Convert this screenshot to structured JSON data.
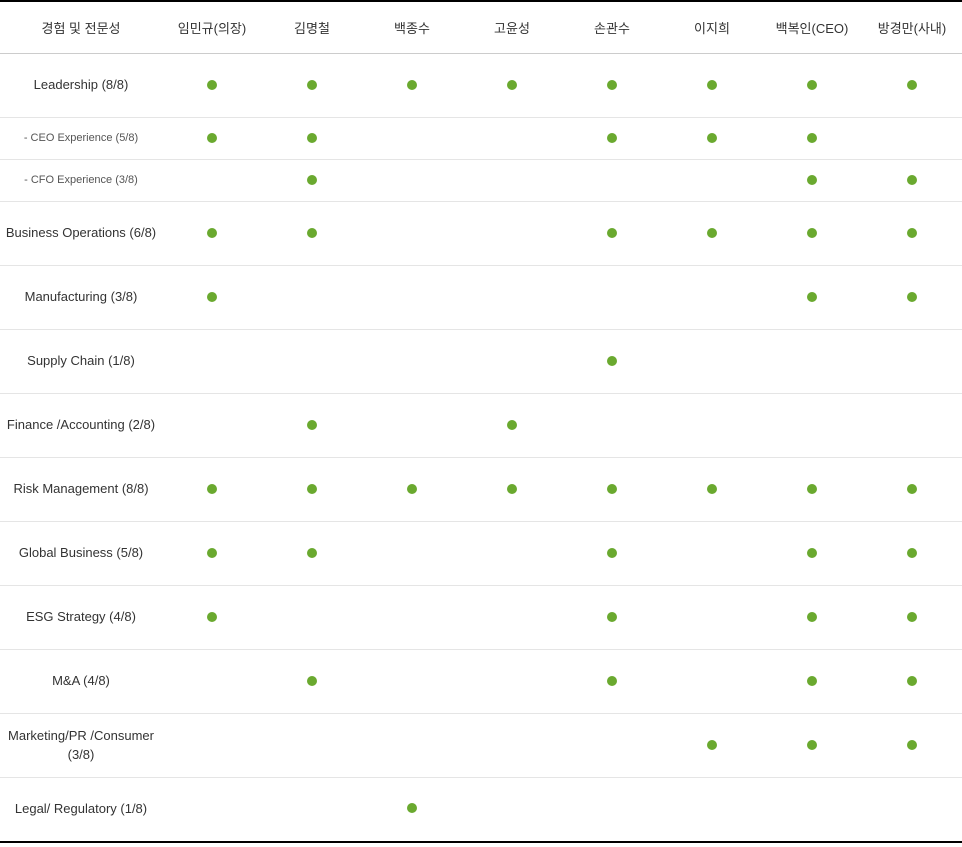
{
  "table": {
    "type": "matrix-table",
    "dot_color": "#6aa92f",
    "border_top_color": "#000000",
    "border_bottom_color": "#000000",
    "row_divider_color": "#e5e5e5",
    "header_divider_color": "#cccccc",
    "background_color": "#ffffff",
    "corner_header": "경험 및 전문성",
    "columns": [
      "임민규(의장)",
      "김명철",
      "백종수",
      "고윤성",
      "손관수",
      "이지희",
      "백복인(CEO)",
      "방경만(사내)"
    ],
    "row_height_normal": 64,
    "row_height_sub": 42,
    "rows": [
      {
        "label": "Leadership (8/8)",
        "sub": false,
        "marks": [
          1,
          1,
          1,
          1,
          1,
          1,
          1,
          1
        ]
      },
      {
        "label": "- CEO Experience (5/8)",
        "sub": true,
        "marks": [
          1,
          1,
          0,
          0,
          1,
          1,
          1,
          0
        ]
      },
      {
        "label": "- CFO Experience (3/8)",
        "sub": true,
        "marks": [
          0,
          1,
          0,
          0,
          0,
          0,
          1,
          1
        ]
      },
      {
        "label": "Business Operations (6/8)",
        "sub": false,
        "marks": [
          1,
          1,
          0,
          0,
          1,
          1,
          1,
          1
        ]
      },
      {
        "label": "Manufacturing (3/8)",
        "sub": false,
        "marks": [
          1,
          0,
          0,
          0,
          0,
          0,
          1,
          1
        ]
      },
      {
        "label": "Supply Chain (1/8)",
        "sub": false,
        "marks": [
          0,
          0,
          0,
          0,
          1,
          0,
          0,
          0
        ]
      },
      {
        "label": "Finance /Accounting (2/8)",
        "sub": false,
        "marks": [
          0,
          1,
          0,
          1,
          0,
          0,
          0,
          0
        ]
      },
      {
        "label": "Risk Management (8/8)",
        "sub": false,
        "marks": [
          1,
          1,
          1,
          1,
          1,
          1,
          1,
          1
        ]
      },
      {
        "label": "Global Business (5/8)",
        "sub": false,
        "marks": [
          1,
          1,
          0,
          0,
          1,
          0,
          1,
          1
        ]
      },
      {
        "label": "ESG Strategy (4/8)",
        "sub": false,
        "marks": [
          1,
          0,
          0,
          0,
          1,
          0,
          1,
          1
        ]
      },
      {
        "label": "M&A (4/8)",
        "sub": false,
        "marks": [
          0,
          1,
          0,
          0,
          1,
          0,
          1,
          1
        ]
      },
      {
        "label": "Marketing/PR /Consumer (3/8)",
        "sub": false,
        "marks": [
          0,
          0,
          0,
          0,
          0,
          1,
          1,
          1
        ]
      },
      {
        "label": "Legal/ Regulatory (1/8)",
        "sub": false,
        "marks": [
          0,
          0,
          1,
          0,
          0,
          0,
          0,
          0
        ]
      }
    ]
  }
}
